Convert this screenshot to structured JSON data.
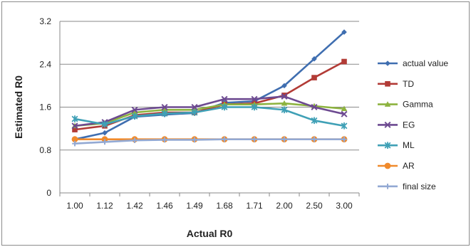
{
  "chart_data": {
    "type": "line",
    "title": "",
    "xlabel": "Actual R0",
    "ylabel": "Estimated R0",
    "categories": [
      "1.00",
      "1.12",
      "1.42",
      "1.46",
      "1.49",
      "1.68",
      "1.71",
      "2.00",
      "2.50",
      "3.00"
    ],
    "yticks": [
      "0",
      "0.8",
      "1.6",
      "2.4",
      "3.2"
    ],
    "ylim": [
      0,
      3.2
    ],
    "grid": "horizontal",
    "legend_position": "right",
    "series": [
      {
        "name": "actual value",
        "color": "#3f6eb0",
        "marker": "diamond",
        "values": [
          1.0,
          1.12,
          1.42,
          1.46,
          1.49,
          1.68,
          1.71,
          2.0,
          2.5,
          3.0
        ]
      },
      {
        "name": "TD",
        "color": "#b23b36",
        "marker": "square",
        "values": [
          1.18,
          1.25,
          1.45,
          1.5,
          1.5,
          1.65,
          1.67,
          1.82,
          2.15,
          2.45
        ]
      },
      {
        "name": "Gamma",
        "color": "#8db33f",
        "marker": "triangle",
        "values": [
          1.25,
          1.3,
          1.5,
          1.55,
          1.55,
          1.65,
          1.65,
          1.67,
          1.62,
          1.57
        ]
      },
      {
        "name": "EG",
        "color": "#6d4a91",
        "marker": "x",
        "values": [
          1.25,
          1.32,
          1.55,
          1.6,
          1.6,
          1.75,
          1.75,
          1.8,
          1.6,
          1.47
        ]
      },
      {
        "name": "ML",
        "color": "#3fa0b6",
        "marker": "star",
        "values": [
          1.38,
          1.28,
          1.43,
          1.48,
          1.5,
          1.6,
          1.6,
          1.55,
          1.35,
          1.25
        ]
      },
      {
        "name": "AR",
        "color": "#f08a2c",
        "marker": "circle",
        "values": [
          1.0,
          1.0,
          1.0,
          1.0,
          1.0,
          1.0,
          1.0,
          1.0,
          1.0,
          1.0
        ]
      },
      {
        "name": "final size",
        "color": "#93a9d3",
        "marker": "plus",
        "values": [
          0.92,
          0.95,
          0.98,
          0.99,
          0.99,
          1.0,
          1.0,
          1.0,
          1.0,
          1.0
        ]
      }
    ]
  }
}
